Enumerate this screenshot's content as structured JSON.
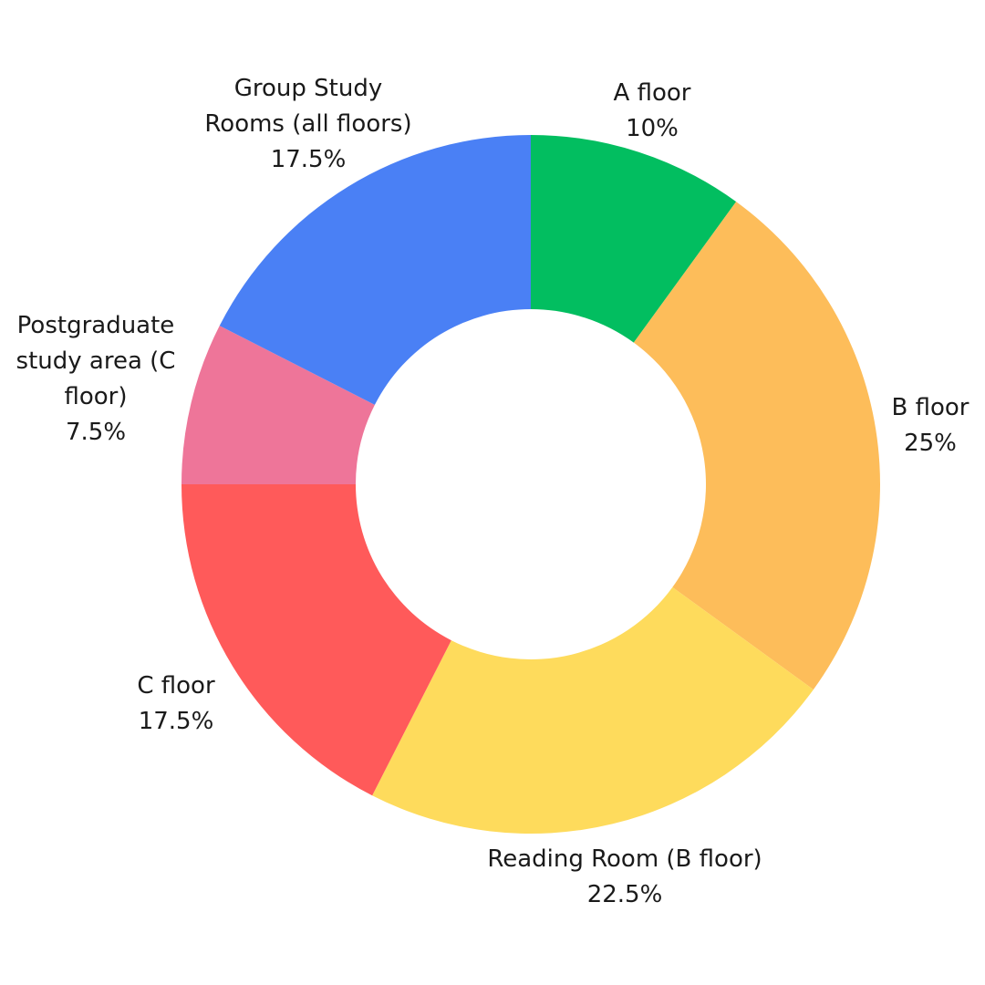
{
  "chart_data": {
    "type": "pie",
    "variant": "donut",
    "title": "",
    "slices": [
      {
        "label": [
          "A floor"
        ],
        "percent_label": "10%",
        "value": 10,
        "color": "#02BE60"
      },
      {
        "label": [
          "B floor"
        ],
        "percent_label": "25%",
        "value": 25,
        "color": "#FDBD5A"
      },
      {
        "label": [
          "Reading Room (B floor)"
        ],
        "percent_label": "22.5%",
        "value": 22.5,
        "color": "#FEDB5C"
      },
      {
        "label": [
          "C floor"
        ],
        "percent_label": "17.5%",
        "value": 17.5,
        "color": "#FF5A5A"
      },
      {
        "label": [
          "Postgraduate",
          "study area (C",
          "floor)"
        ],
        "percent_label": "7.5%",
        "value": 7.5,
        "color": "#EE7599"
      },
      {
        "label": [
          "Group Study",
          "Rooms (all floors)"
        ],
        "percent_label": "17.5%",
        "value": 17.5,
        "color": "#4A80F5"
      }
    ]
  }
}
